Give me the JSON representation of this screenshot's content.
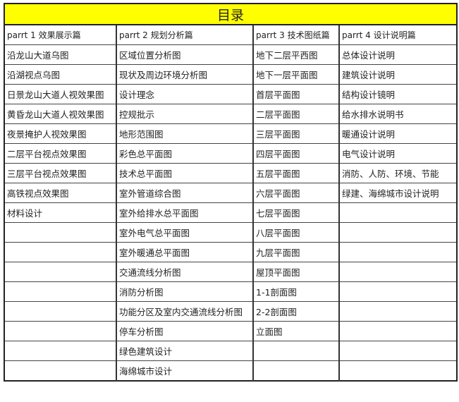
{
  "title": "目录",
  "headers": [
    "parrt 1 效果展示篇",
    "parrt 2 规划分析篇",
    "parrt 3 技术图纸篇",
    "parrt 4 设计说明篇"
  ],
  "rows": [
    [
      "沿龙山大道乌图",
      "区域位置分析图",
      "地下二层平西图",
      "总体设计说明"
    ],
    [
      "沿湖视点乌图",
      "现状及周边环境分析图",
      "地下一层平面图",
      "建筑设计说明"
    ],
    [
      "日景龙山大道人视效果图",
      "设计理念",
      "首层平面图",
      "结构设计镜明"
    ],
    [
      "黄昏龙山大道人视效果图",
      "控规批示",
      "二层平面图",
      "给水排水说明书"
    ],
    [
      "夜景掩护人视效果图",
      "地形范围图",
      "三层平面图",
      "暖通设计说明"
    ],
    [
      "二层平台视点效果图",
      "彩色总平面图",
      "四层平面图",
      "电气设计说明"
    ],
    [
      "三层平台视点效果图",
      "技术总平面图",
      "五层平面图",
      "消防、人防、环境、节能"
    ],
    [
      "高铁视点效果图",
      "室外管道综合图",
      "六层平面图",
      "绿建、海绵城市设计说明"
    ],
    [
      "材料设计",
      "室外给排水总平面图",
      "七层平面图",
      ""
    ],
    [
      "",
      "室外电气总平面图",
      "八层平面图",
      ""
    ],
    [
      "",
      "室外暖通总平面图",
      "九层平面图",
      ""
    ],
    [
      "",
      "交通流线分析图",
      "屋顶平面图",
      ""
    ],
    [
      "",
      "消防分析图",
      "1-1剖面图",
      ""
    ],
    [
      "",
      "功能分区及室内交通流线分析图",
      "2-2剖面图",
      ""
    ],
    [
      "",
      "停车分析图",
      "立面图",
      ""
    ],
    [
      "",
      "绿色建筑设计",
      "",
      ""
    ],
    [
      "",
      "海绵城市设计",
      "",
      ""
    ]
  ],
  "colors": {
    "title_background": "#ffff00",
    "border": "#222222"
  }
}
